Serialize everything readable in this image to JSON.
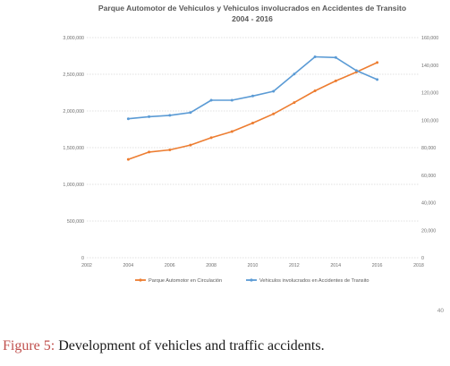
{
  "chart_data": {
    "type": "line",
    "title": "Parque Automotor de Vehiculos y Vehiculos involucrados en Accidentes de Transito",
    "subtitle": "2004 - 2016",
    "xlabel": "",
    "ylabel": "",
    "x_ticks": [
      "2002",
      "2004",
      "2006",
      "2008",
      "2010",
      "2012",
      "2014",
      "2016",
      "2018"
    ],
    "xlim": [
      2002,
      2018
    ],
    "y_left": {
      "lim": [
        0,
        3000000
      ],
      "ticks": [
        "0",
        "500,000",
        "1,000,000",
        "1,500,000",
        "2,000,000",
        "2,500,000",
        "3,000,000"
      ]
    },
    "y_right": {
      "lim": [
        0,
        160000
      ],
      "ticks": [
        "0",
        "20,000",
        "40,000",
        "60,000",
        "80,000",
        "100,000",
        "120,000",
        "140,000",
        "160,000"
      ]
    },
    "grid": true,
    "legend_position": "bottom",
    "series": [
      {
        "name": "Parque Automotor en Circulación",
        "axis": "left",
        "color": "#ed7d31",
        "x": [
          2004,
          2005,
          2006,
          2007,
          2008,
          2009,
          2010,
          2011,
          2012,
          2013,
          2014,
          2015,
          2016
        ],
        "values": [
          1340000,
          1440000,
          1470000,
          1535000,
          1635000,
          1720000,
          1835000,
          1960000,
          2115000,
          2275000,
          2410000,
          2530000,
          2660000
        ]
      },
      {
        "name": "Vehiculos involucrados en Accidentes de Transito",
        "axis": "right",
        "color": "#5b9bd5",
        "x": [
          2004,
          2005,
          2006,
          2007,
          2008,
          2009,
          2010,
          2011,
          2012,
          2013,
          2014,
          2015,
          2016
        ],
        "values": [
          101000,
          102500,
          103500,
          105500,
          114500,
          114500,
          117500,
          121000,
          133500,
          146000,
          145500,
          136000,
          129500
        ]
      }
    ]
  },
  "corner_mark": "40",
  "caption": {
    "lead": "Figure 5:",
    "text": " Development of vehicles and traffic accidents."
  }
}
